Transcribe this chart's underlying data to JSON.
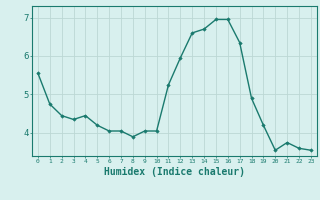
{
  "x": [
    0,
    1,
    2,
    3,
    4,
    5,
    6,
    7,
    8,
    9,
    10,
    11,
    12,
    13,
    14,
    15,
    16,
    17,
    18,
    19,
    20,
    21,
    22,
    23
  ],
  "y": [
    5.55,
    4.75,
    4.45,
    4.35,
    4.45,
    4.2,
    4.05,
    4.05,
    3.9,
    4.05,
    4.05,
    5.25,
    5.95,
    6.6,
    6.7,
    6.95,
    6.95,
    6.35,
    4.9,
    4.2,
    3.55,
    3.75,
    3.6,
    3.55
  ],
  "line_color": "#1a7a6e",
  "marker": "D",
  "marker_size": 1.8,
  "background_color": "#d8f0ee",
  "grid_color": "#bcd8d4",
  "xlabel": "Humidex (Indice chaleur)",
  "xlabel_fontsize": 7,
  "ytick_labels": [
    "4",
    "5",
    "6",
    "7"
  ],
  "ytick_values": [
    4,
    5,
    6,
    7
  ],
  "xtick_labels": [
    "0",
    "1",
    "2",
    "3",
    "4",
    "5",
    "6",
    "7",
    "8",
    "9",
    "10",
    "11",
    "12",
    "13",
    "14",
    "15",
    "16",
    "17",
    "18",
    "19",
    "20",
    "21",
    "22",
    "23"
  ],
  "ylim": [
    3.4,
    7.3
  ],
  "xlim": [
    -0.5,
    23.5
  ],
  "tick_color": "#1a7a6e",
  "axis_color": "#1a7a6e",
  "line_width": 1.0
}
